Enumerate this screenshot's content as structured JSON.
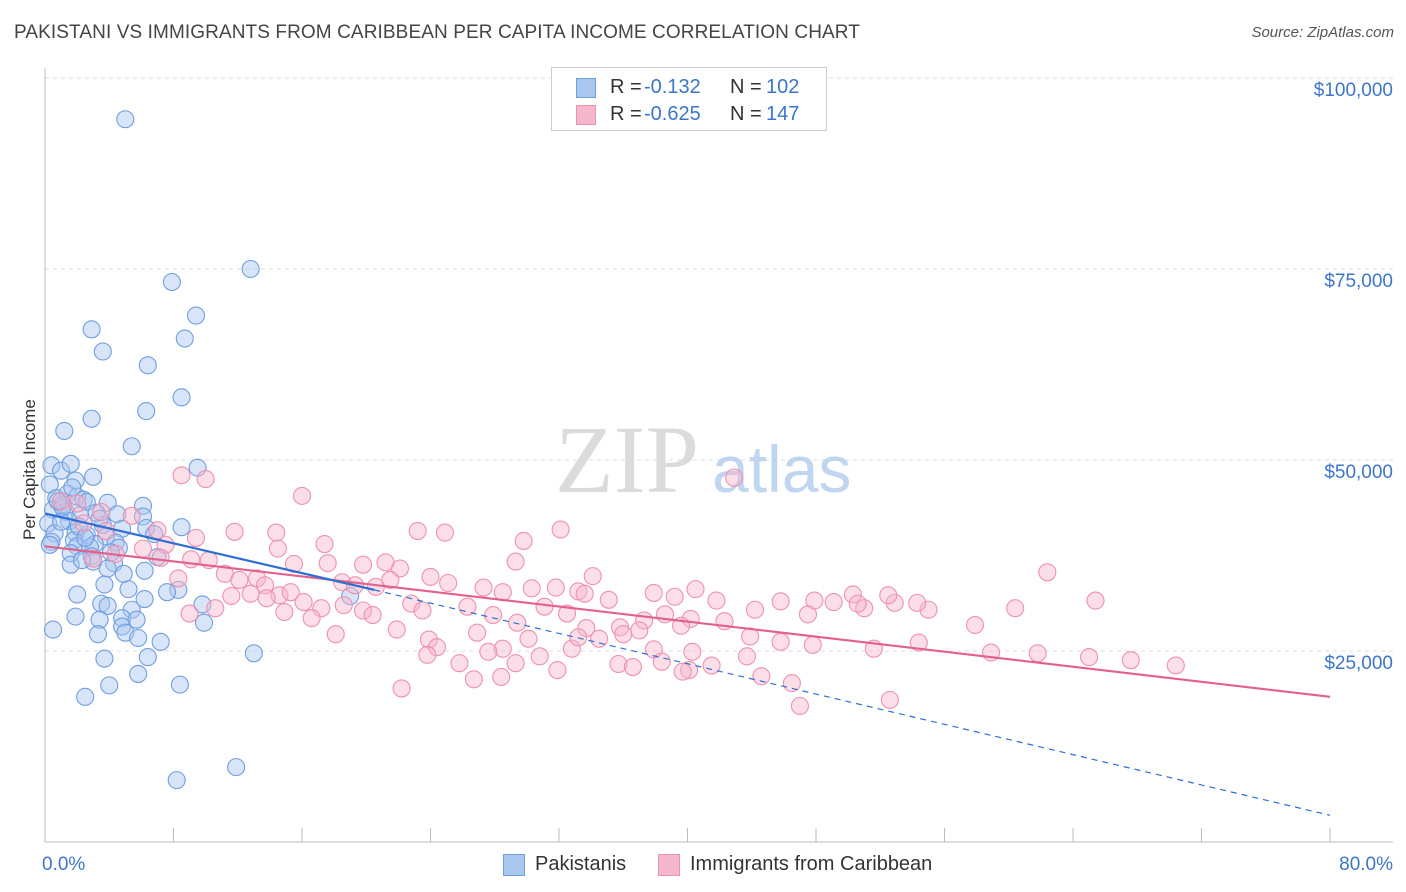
{
  "title": "PAKISTANI VS IMMIGRANTS FROM CARIBBEAN PER CAPITA INCOME CORRELATION CHART",
  "source": "Source: ZipAtlas.com",
  "watermark": {
    "zip": "ZIP",
    "atlas": "atlas"
  },
  "colors": {
    "blue_fill": "#a9c6ef",
    "blue_stroke": "#6f9ee0",
    "blue_line": "#2e6fd1",
    "pink_fill": "#f6b6cb",
    "pink_stroke": "#ee90b0",
    "pink_line": "#e3608c",
    "grid": "#dddddd",
    "tick": "#3d75c9"
  },
  "legend_top": [
    {
      "r_label": "R =",
      "r_value": "-0.132",
      "n_label": "N =",
      "n_value": "102"
    },
    {
      "r_label": "R =",
      "r_value": "-0.625",
      "n_label": "N =",
      "n_value": "147"
    }
  ],
  "legend_bottom": [
    "Pakistanis",
    "Immigrants from Caribbean"
  ],
  "chart_data": {
    "type": "scatter",
    "title": "PAKISTANI VS IMMIGRANTS FROM CARIBBEAN PER CAPITA INCOME CORRELATION CHART",
    "xlabel": "",
    "ylabel": "Per Capita Income",
    "xlim": [
      0,
      80
    ],
    "ylim": [
      0,
      105000
    ],
    "x_tick_labels": [
      "0.0%",
      "80.0%"
    ],
    "y_ticks": [
      25000,
      50000,
      75000,
      100000
    ],
    "y_tick_labels": [
      "$25,000",
      "$50,000",
      "$75,000",
      "$100,000"
    ],
    "grid": true,
    "legend_position": "top-center",
    "series": [
      {
        "name": "Pakistanis",
        "r": -0.132,
        "n": 102,
        "trend": {
          "x0": 0,
          "y0": 43000,
          "x1": 20.5,
          "y1": 33000,
          "dash_to_x": 80,
          "dash_to_y": 3500
        },
        "points": [
          [
            5,
            94600
          ],
          [
            7.9,
            73300
          ],
          [
            12.8,
            75000
          ],
          [
            2.9,
            67100
          ],
          [
            3.6,
            64200
          ],
          [
            9.4,
            68900
          ],
          [
            8.7,
            65900
          ],
          [
            6.4,
            62400
          ],
          [
            8.5,
            58200
          ],
          [
            6.3,
            56400
          ],
          [
            1.2,
            53800
          ],
          [
            2.9,
            55400
          ],
          [
            5.4,
            51800
          ],
          [
            0.4,
            49300
          ],
          [
            1.0,
            48600
          ],
          [
            1.6,
            49500
          ],
          [
            9.5,
            49000
          ],
          [
            0.3,
            46800
          ],
          [
            1.9,
            47300
          ],
          [
            3.0,
            47800
          ],
          [
            0.7,
            45000
          ],
          [
            1.4,
            45600
          ],
          [
            2.0,
            45200
          ],
          [
            2.4,
            44800
          ],
          [
            1.1,
            44200
          ],
          [
            2.6,
            44500
          ],
          [
            3.9,
            44400
          ],
          [
            6.1,
            44000
          ],
          [
            0.5,
            43500
          ],
          [
            1.3,
            43200
          ],
          [
            2.2,
            42800
          ],
          [
            4.5,
            42900
          ],
          [
            6.1,
            42600
          ],
          [
            0.2,
            41700
          ],
          [
            1.5,
            42000
          ],
          [
            3.6,
            41500
          ],
          [
            4.8,
            41000
          ],
          [
            6.3,
            41100
          ],
          [
            8.5,
            41200
          ],
          [
            0.6,
            40400
          ],
          [
            1.9,
            40500
          ],
          [
            2.6,
            40200
          ],
          [
            3.8,
            40000
          ],
          [
            0.4,
            39300
          ],
          [
            1.8,
            39500
          ],
          [
            3.1,
            39000
          ],
          [
            4.4,
            39200
          ],
          [
            2.0,
            38700
          ],
          [
            2.8,
            38600
          ],
          [
            4.6,
            38500
          ],
          [
            1.6,
            37800
          ],
          [
            2.9,
            37400
          ],
          [
            3.0,
            36700
          ],
          [
            4.3,
            36500
          ],
          [
            1.6,
            36300
          ],
          [
            3.9,
            35800
          ],
          [
            6.2,
            35500
          ],
          [
            3.7,
            33700
          ],
          [
            8.3,
            33000
          ],
          [
            7.6,
            32700
          ],
          [
            19.0,
            32200
          ],
          [
            2.0,
            32400
          ],
          [
            6.2,
            31800
          ],
          [
            3.5,
            31200
          ],
          [
            3.9,
            30900
          ],
          [
            9.8,
            31100
          ],
          [
            5.4,
            30400
          ],
          [
            1.9,
            29500
          ],
          [
            3.4,
            29100
          ],
          [
            4.8,
            29300
          ],
          [
            5.7,
            29100
          ],
          [
            9.9,
            28700
          ],
          [
            4.8,
            28200
          ],
          [
            5.0,
            27400
          ],
          [
            3.3,
            27200
          ],
          [
            5.8,
            26700
          ],
          [
            0.5,
            27800
          ],
          [
            7.2,
            26200
          ],
          [
            13.0,
            24700
          ],
          [
            3.7,
            24000
          ],
          [
            6.4,
            24200
          ],
          [
            5.8,
            22000
          ],
          [
            4.0,
            20500
          ],
          [
            8.4,
            20600
          ],
          [
            2.5,
            19000
          ],
          [
            8.2,
            8100
          ],
          [
            11.9,
            9800
          ],
          [
            1.1,
            43800
          ],
          [
            2.1,
            41300
          ],
          [
            0.8,
            44600
          ],
          [
            1.7,
            46400
          ],
          [
            3.2,
            43100
          ],
          [
            4.1,
            37900
          ],
          [
            5.2,
            33100
          ],
          [
            7.0,
            37300
          ],
          [
            0.3,
            38900
          ],
          [
            2.5,
            39800
          ],
          [
            1.0,
            41900
          ],
          [
            3.4,
            42300
          ],
          [
            6.8,
            40300
          ],
          [
            4.9,
            35100
          ],
          [
            2.3,
            36900
          ]
        ]
      },
      {
        "name": "Immigrants from Caribbean",
        "r": -0.625,
        "n": 147,
        "trend": {
          "x0": 0,
          "y0": 38700,
          "x1": 80,
          "y1": 19000
        },
        "points": [
          [
            8.5,
            48000
          ],
          [
            10.0,
            47500
          ],
          [
            42.9,
            47700
          ],
          [
            16.0,
            45300
          ],
          [
            1.0,
            44600
          ],
          [
            2.0,
            44300
          ],
          [
            3.5,
            43200
          ],
          [
            5.4,
            42700
          ],
          [
            2.4,
            41700
          ],
          [
            3.8,
            40700
          ],
          [
            7.0,
            40800
          ],
          [
            9.4,
            39800
          ],
          [
            11.8,
            40600
          ],
          [
            14.4,
            40500
          ],
          [
            23.2,
            40700
          ],
          [
            24.9,
            40500
          ],
          [
            29.8,
            39400
          ],
          [
            32.1,
            40900
          ],
          [
            17.4,
            39000
          ],
          [
            7.5,
            38900
          ],
          [
            6.1,
            38400
          ],
          [
            4.4,
            37700
          ],
          [
            3.0,
            37100
          ],
          [
            7.2,
            37200
          ],
          [
            9.1,
            37000
          ],
          [
            10.2,
            36900
          ],
          [
            14.5,
            38400
          ],
          [
            15.5,
            36400
          ],
          [
            17.6,
            36500
          ],
          [
            19.8,
            36300
          ],
          [
            21.2,
            36600
          ],
          [
            22.1,
            35800
          ],
          [
            29.3,
            36700
          ],
          [
            34.1,
            34800
          ],
          [
            11.2,
            35100
          ],
          [
            12.1,
            34300
          ],
          [
            13.2,
            34500
          ],
          [
            8.3,
            34500
          ],
          [
            18.5,
            34000
          ],
          [
            19.3,
            33600
          ],
          [
            20.6,
            33400
          ],
          [
            21.5,
            34300
          ],
          [
            24.0,
            34700
          ],
          [
            25.1,
            33900
          ],
          [
            27.3,
            33300
          ],
          [
            28.5,
            32700
          ],
          [
            30.3,
            33200
          ],
          [
            31.8,
            33300
          ],
          [
            33.2,
            32800
          ],
          [
            33.6,
            32500
          ],
          [
            35.1,
            31700
          ],
          [
            37.9,
            32600
          ],
          [
            39.2,
            32100
          ],
          [
            40.5,
            33100
          ],
          [
            41.8,
            31600
          ],
          [
            44.2,
            30400
          ],
          [
            45.8,
            31500
          ],
          [
            47.9,
            31600
          ],
          [
            49.1,
            31400
          ],
          [
            50.3,
            32400
          ],
          [
            51.0,
            30600
          ],
          [
            52.9,
            31300
          ],
          [
            55.0,
            30400
          ],
          [
            57.9,
            28400
          ],
          [
            60.4,
            30600
          ],
          [
            62.4,
            35300
          ],
          [
            65.4,
            31600
          ],
          [
            12.8,
            32500
          ],
          [
            13.7,
            33600
          ],
          [
            14.6,
            32300
          ],
          [
            15.3,
            32700
          ],
          [
            16.1,
            31400
          ],
          [
            17.2,
            30600
          ],
          [
            18.6,
            31000
          ],
          [
            19.8,
            30300
          ],
          [
            20.4,
            29700
          ],
          [
            22.8,
            31200
          ],
          [
            23.5,
            30300
          ],
          [
            26.3,
            30800
          ],
          [
            27.9,
            29700
          ],
          [
            29.4,
            28700
          ],
          [
            31.1,
            30800
          ],
          [
            32.5,
            29900
          ],
          [
            33.7,
            28000
          ],
          [
            35.8,
            28100
          ],
          [
            37.3,
            29000
          ],
          [
            38.6,
            29800
          ],
          [
            40.2,
            29200
          ],
          [
            42.3,
            28900
          ],
          [
            43.9,
            26900
          ],
          [
            45.8,
            26200
          ],
          [
            47.5,
            29800
          ],
          [
            50.6,
            31200
          ],
          [
            52.5,
            32300
          ],
          [
            54.3,
            31300
          ],
          [
            14.9,
            30100
          ],
          [
            16.6,
            29300
          ],
          [
            18.1,
            27200
          ],
          [
            21.9,
            27800
          ],
          [
            23.9,
            26500
          ],
          [
            26.9,
            27400
          ],
          [
            28.5,
            25300
          ],
          [
            30.1,
            26600
          ],
          [
            32.8,
            25300
          ],
          [
            34.5,
            26600
          ],
          [
            36.0,
            27200
          ],
          [
            37.9,
            25200
          ],
          [
            40.3,
            24900
          ],
          [
            41.5,
            23100
          ],
          [
            43.7,
            24300
          ],
          [
            47.8,
            25800
          ],
          [
            51.6,
            25300
          ],
          [
            54.4,
            26100
          ],
          [
            58.9,
            24800
          ],
          [
            61.8,
            24700
          ],
          [
            65.0,
            24200
          ],
          [
            67.6,
            23800
          ],
          [
            70.4,
            23100
          ],
          [
            13.8,
            31900
          ],
          [
            11.6,
            32200
          ],
          [
            10.6,
            30600
          ],
          [
            9.0,
            29900
          ],
          [
            24.4,
            25500
          ],
          [
            25.8,
            23400
          ],
          [
            27.6,
            24900
          ],
          [
            29.3,
            23400
          ],
          [
            31.9,
            22500
          ],
          [
            35.7,
            23300
          ],
          [
            38.4,
            23600
          ],
          [
            40.1,
            22500
          ],
          [
            44.6,
            21700
          ],
          [
            46.5,
            20800
          ],
          [
            22.2,
            20100
          ],
          [
            23.8,
            24500
          ],
          [
            26.7,
            21300
          ],
          [
            28.4,
            21600
          ],
          [
            36.6,
            22900
          ],
          [
            39.7,
            22300
          ],
          [
            47.0,
            17800
          ],
          [
            52.6,
            18600
          ],
          [
            30.8,
            24300
          ],
          [
            33.2,
            26800
          ],
          [
            37.0,
            27700
          ],
          [
            39.6,
            28300
          ]
        ]
      }
    ]
  }
}
